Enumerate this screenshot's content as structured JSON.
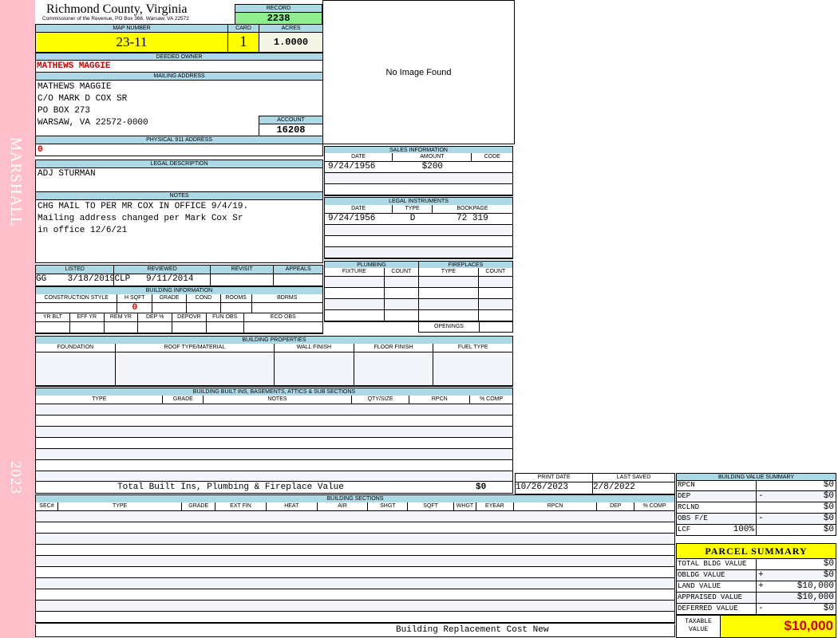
{
  "sidebar": {
    "name": "MARSHALL",
    "year": "2023"
  },
  "header": {
    "county": "Richmond County, Virginia",
    "office": "Commissioner of the Revenue, PO Box 366, Warsaw, VA 22572"
  },
  "record": {
    "label": "RECORD",
    "value": "2238"
  },
  "image": {
    "text": "No Image Found"
  },
  "map": {
    "label": "MAP NUMBER",
    "value": "23-11"
  },
  "card": {
    "label": "CARD",
    "value": "1"
  },
  "acres": {
    "label": "ACRES",
    "value": "1.0000"
  },
  "owner": {
    "label": "DEEDED OWNER",
    "value": "MATHEWS MAGGIE"
  },
  "mailing": {
    "label": "MAILING ADDRESS",
    "lines": [
      "MATHEWS MAGGIE",
      "C/O MARK D COX SR",
      "PO BOX 273",
      "WARSAW, VA 22572-0000"
    ]
  },
  "account": {
    "label": "ACCOUNT",
    "value": "16208"
  },
  "physical": {
    "label": "PHYSICAL 911 ADDRESS",
    "value": "0"
  },
  "legal_desc": {
    "label": "LEGAL DESCRIPTION",
    "value": "ADJ STURMAN"
  },
  "notes": {
    "label": "NOTES",
    "lines": [
      "CHG MAIL TO PER MR COX IN OFFICE 9/4/19.",
      "Mailing address changed per Mark Cox Sr",
      "in office 12/6/21"
    ]
  },
  "review": {
    "headers": [
      "LISTED",
      "REVIEWED",
      "REVISIT",
      "APPEALS"
    ],
    "values": [
      "GG    3/18/2019",
      "CLP   9/11/2014",
      "",
      ""
    ]
  },
  "building_info": {
    "label": "BUILDING INFORMATION",
    "headers1": [
      "CONSTRUCTION STYLE",
      "H SQFT",
      "GRADE",
      "COND",
      "ROOMS",
      "BDRMS"
    ],
    "values1": [
      "",
      "0",
      "",
      "",
      "",
      ""
    ],
    "headers2": [
      "YR BLT",
      "EFF YR",
      "REM YR",
      "DEP %",
      "DEPOVR",
      "FUN OBS",
      "ECO OBS"
    ],
    "values2": [
      "",
      "",
      "",
      "",
      "",
      "",
      ""
    ]
  },
  "sales": {
    "label": "SALES INFORMATION",
    "headers": [
      "DATE",
      "AMOUNT",
      "CODE"
    ],
    "rows": [
      [
        "9/24/1956",
        "$200",
        ""
      ],
      [
        "",
        "",
        ""
      ],
      [
        "",
        "",
        ""
      ]
    ]
  },
  "legal_instruments": {
    "label": "LEGAL INSTRUMENTS",
    "headers": [
      "DATE",
      "TYPE",
      "BOOKPAGE"
    ],
    "rows": [
      [
        "9/24/1956",
        "D",
        "72 319"
      ],
      [
        "",
        "",
        ""
      ],
      [
        "",
        "",
        ""
      ],
      [
        "",
        "",
        ""
      ]
    ]
  },
  "plumbing": {
    "label": "PLUMBING",
    "headers": [
      "FIXTURE",
      "COUNT"
    ]
  },
  "fireplaces": {
    "label": "FIREPLACES",
    "headers": [
      "TYPE",
      "COUNT"
    ],
    "openings": "OPENINGS"
  },
  "building_properties": {
    "label": "BUILDING PROPERTIES",
    "headers": [
      "FOUNDATION",
      "ROOF TYPE/MATERIAL",
      "WALL FINISH",
      "FLOOR FINISH",
      "FUEL TYPE"
    ]
  },
  "built_ins": {
    "label": "BUILDING BUILT INS, BASEMENTS, ATTICS & SUB SECTIONS",
    "headers": [
      "TYPE",
      "GRADE",
      "NOTES",
      "QTY/SIZE",
      "RPCN",
      "% COMP"
    ],
    "total_label": "Total Built Ins, Plumbing & Fireplace Value",
    "total_value": "$0"
  },
  "print_date": {
    "label": "PRINT DATE",
    "value": "10/26/2023"
  },
  "last_saved": {
    "label": "LAST SAVED",
    "value": "2/8/2022"
  },
  "building_sections": {
    "label": "BUILDING SECTIONS",
    "headers": [
      "SEC#",
      "TYPE",
      "GRADE",
      "EXT FIN",
      "HEAT",
      "AIR",
      "SHGT",
      "SQFT",
      "WHGT",
      "EYEAR",
      "RPCN",
      "DEP",
      "% COMP"
    ],
    "footer": "Building Replacement Cost New"
  },
  "value_summary": {
    "label": "BUILDING VALUE SUMMARY",
    "rows": [
      {
        "key": "RPCN",
        "extra": "",
        "op": "",
        "value": "$0"
      },
      {
        "key": "DEP",
        "extra": "",
        "op": "-",
        "value": "$0"
      },
      {
        "key": "RCLND",
        "extra": "",
        "op": "",
        "value": "$0"
      },
      {
        "key": "OBS F/E",
        "extra": "",
        "op": "-",
        "value": "$0"
      },
      {
        "key": "LCF",
        "extra": "100%",
        "op": "",
        "value": "$0"
      }
    ]
  },
  "parcel_summary": {
    "label": "PARCEL SUMMARY",
    "rows": [
      {
        "key": "TOTAL BLDG VALUE",
        "extra": "",
        "op": "",
        "value": "$0"
      },
      {
        "key": "OBLDG VALUE",
        "extra": "",
        "op": "+",
        "value": "$0"
      },
      {
        "key": "LAND VALUE",
        "extra": "",
        "op": "+",
        "value": "$10,000"
      },
      {
        "key": "APPRAISED VALUE",
        "extra": "",
        "op": "",
        "value": "$10,000"
      },
      {
        "key": "DEFERRED VALUE",
        "extra": "",
        "op": "-",
        "value": "$0"
      }
    ],
    "taxable_label": "TAXABLE VALUE",
    "taxable_value": "$10,000"
  },
  "colors": {
    "header_bar": "#add8e6",
    "highlight": "#ffff00",
    "record": "#90ee90",
    "sidebar": "#ffc0cb",
    "alert": "#d00000"
  }
}
